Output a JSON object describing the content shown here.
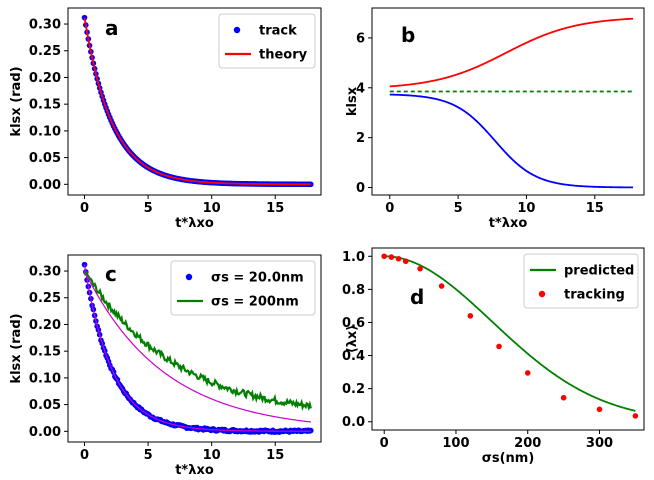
{
  "figure": {
    "panels": [
      "a",
      "b",
      "c",
      "d"
    ]
  },
  "chart_data": [
    {
      "panel": "a",
      "type": "scatter",
      "title": "",
      "xlabel": "t*λxo",
      "ylabel": "klsx (rad)",
      "xlim": [
        -1.3,
        18.6
      ],
      "ylim": [
        -0.02,
        0.33
      ],
      "xticks": [
        0,
        5,
        10,
        15
      ],
      "yticks": [
        0.0,
        0.05,
        0.1,
        0.15,
        0.2,
        0.25,
        0.3
      ],
      "xtick_labels": [
        "0",
        "5",
        "10",
        "15"
      ],
      "ytick_labels": [
        "0.00",
        "0.05",
        "0.10",
        "0.15",
        "0.20",
        "0.25",
        "0.30"
      ],
      "panel_letter": "a",
      "legend": {
        "position": "top-right",
        "entries": [
          "track",
          "theory"
        ]
      },
      "series": [
        {
          "name": "track",
          "kind": "points",
          "color": "#0000ff",
          "model": "exp",
          "A": 0.312,
          "k": 0.46,
          "x_range": [
            0,
            17.8
          ],
          "n": 180
        },
        {
          "name": "theory",
          "kind": "line",
          "color": "#ff0000",
          "model": "exp",
          "A": 0.312,
          "k": 0.46,
          "x_range": [
            0,
            17.8
          ]
        }
      ]
    },
    {
      "panel": "b",
      "type": "line",
      "title": "",
      "xlabel": "t*λxo",
      "ylabel": "klsx",
      "xlim": [
        -1.3,
        18.6
      ],
      "ylim": [
        -0.3,
        7.2
      ],
      "xticks": [
        0,
        5,
        10,
        15
      ],
      "yticks": [
        0,
        2,
        4,
        6
      ],
      "xtick_labels": [
        "0",
        "5",
        "10",
        "15"
      ],
      "ytick_labels": [
        "0",
        "2",
        "4",
        "6"
      ],
      "panel_letter": "b",
      "series": [
        {
          "name": "red curve",
          "kind": "line",
          "color": "#ff0000",
          "model": "sigmoid-up",
          "start": 3.95,
          "end": 6.85,
          "mid": 8.5,
          "width": 2.6,
          "x_range": [
            0,
            17.8
          ]
        },
        {
          "name": "blue curve",
          "kind": "line",
          "color": "#0000ff",
          "model": "sigmoid-down",
          "start": 3.75,
          "end": 0.0,
          "mid": 7.7,
          "width": 1.5,
          "x_range": [
            0,
            17.8
          ]
        },
        {
          "name": "reference",
          "kind": "dashed",
          "color": "#008000",
          "model": "const",
          "value": 3.85,
          "x_range": [
            0,
            17.8
          ]
        }
      ]
    },
    {
      "panel": "c",
      "type": "scatter",
      "title": "",
      "xlabel": "t*λxo",
      "ylabel": "klsx (rad)",
      "xlim": [
        -1.3,
        18.6
      ],
      "ylim": [
        -0.02,
        0.33
      ],
      "xticks": [
        0,
        5,
        10,
        15
      ],
      "yticks": [
        0.0,
        0.05,
        0.1,
        0.15,
        0.2,
        0.25,
        0.3
      ],
      "xtick_labels": [
        "0",
        "5",
        "10",
        "15"
      ],
      "ytick_labels": [
        "0.00",
        "0.05",
        "0.10",
        "0.15",
        "0.20",
        "0.25",
        "0.30"
      ],
      "panel_letter": "c",
      "legend": {
        "position": "top-right",
        "entries": [
          "σs = 20.0nm",
          "σs = 200nm"
        ]
      },
      "series": [
        {
          "name": "σs = 20.0nm",
          "kind": "points",
          "color": "#0000ff",
          "model": "exp",
          "A": 0.312,
          "k": 0.46,
          "x_range": [
            0,
            17.8
          ],
          "n": 180
        },
        {
          "name": "fit 20.0nm",
          "kind": "line",
          "color": "#cc00cc",
          "model": "exp",
          "A": 0.312,
          "k": 0.46,
          "x_range": [
            0,
            17.8
          ]
        },
        {
          "name": "σs = 200nm",
          "kind": "noisy-line",
          "color": "#008000",
          "model": "exp",
          "A": 0.3,
          "k": 0.13,
          "noise": 0.006,
          "drift": 0.018,
          "x_range": [
            0,
            17.8
          ]
        },
        {
          "name": "fit 200nm",
          "kind": "line",
          "color": "#cc00cc",
          "model": "exp",
          "A": 0.3,
          "k": 0.16,
          "x_range": [
            0,
            17.8
          ]
        }
      ]
    },
    {
      "panel": "d",
      "type": "line",
      "title": "",
      "xlabel": "σs(nm)",
      "ylabel": "⟨λx⟩",
      "xlim": [
        -17,
        362
      ],
      "ylim": [
        -0.05,
        1.05
      ],
      "xticks": [
        0,
        100,
        200,
        300
      ],
      "yticks": [
        0.0,
        0.2,
        0.4,
        0.6,
        0.8,
        1.0
      ],
      "xtick_labels": [
        "0",
        "100",
        "200",
        "300"
      ],
      "ytick_labels": [
        "0.0",
        "0.2",
        "0.4",
        "0.6",
        "0.8",
        "1.0"
      ],
      "panel_letter": "d",
      "legend": {
        "position": "top-right",
        "entries": [
          "predicted",
          "tracking"
        ]
      },
      "series": [
        {
          "name": "predicted",
          "kind": "line",
          "color": "#008000",
          "model": "gauss",
          "sigma": 150,
          "x_range": [
            0,
            350
          ]
        },
        {
          "name": "tracking",
          "kind": "dots",
          "color": "#ff0000",
          "x": [
            0,
            10,
            20,
            30,
            50,
            80,
            120,
            160,
            200,
            250,
            300,
            350
          ],
          "y": [
            1.0,
            0.995,
            0.985,
            0.97,
            0.925,
            0.82,
            0.64,
            0.455,
            0.295,
            0.145,
            0.075,
            0.035
          ]
        }
      ]
    }
  ]
}
